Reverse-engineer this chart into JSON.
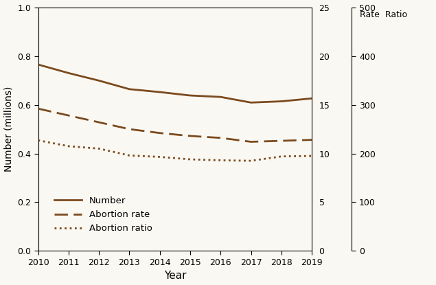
{
  "years": [
    2010,
    2011,
    2012,
    2013,
    2014,
    2015,
    2016,
    2017,
    2018,
    2019
  ],
  "number_millions": [
    0.765,
    0.73,
    0.699,
    0.664,
    0.652,
    0.638,
    0.632,
    0.609,
    0.614,
    0.626
  ],
  "abortion_rate": [
    14.6,
    13.9,
    13.2,
    12.5,
    12.1,
    11.8,
    11.6,
    11.2,
    11.3,
    11.4
  ],
  "abortion_ratio": [
    227,
    215,
    210,
    196,
    193,
    188,
    186,
    185,
    194,
    195
  ],
  "color": "#7B4A1E",
  "ylabel_left": "Number (millions)",
  "xlabel": "Year",
  "rate_ratio_header": "Rate  Ratio",
  "ylim_left": [
    0.0,
    1.0
  ],
  "ylim_rate": [
    0,
    25
  ],
  "ylim_ratio": [
    0,
    500
  ],
  "yticks_left": [
    0.0,
    0.2,
    0.4,
    0.6,
    0.8,
    1.0
  ],
  "yticks_rate": [
    0,
    5,
    10,
    15,
    20,
    25
  ],
  "yticks_ratio": [
    0,
    100,
    200,
    300,
    400,
    500
  ],
  "legend_labels": [
    "Number",
    "Abortion rate",
    "Abortion ratio"
  ],
  "background_color": "#FAF8F2"
}
